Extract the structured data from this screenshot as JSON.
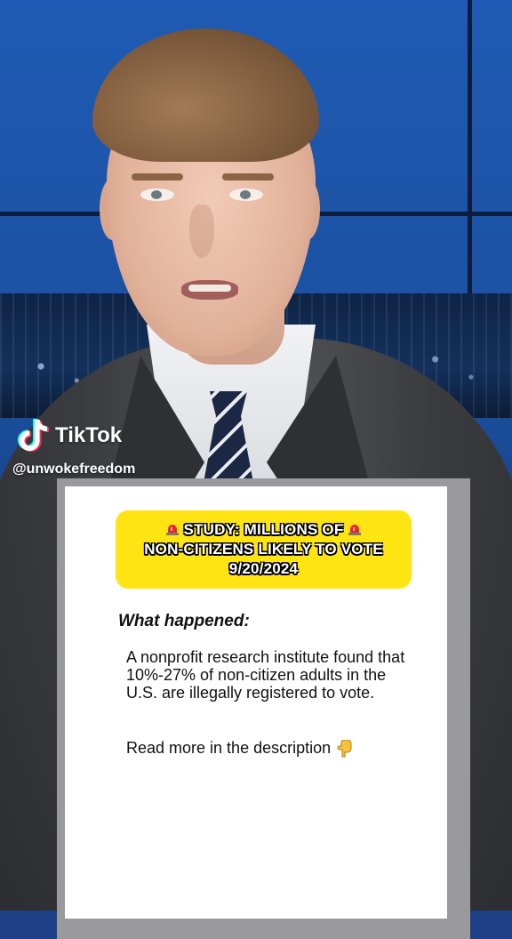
{
  "watermark": {
    "brand": "TikTok",
    "handle": "@unwokefreedom"
  },
  "card": {
    "headline_line1": "STUDY: MILLIONS OF",
    "headline_line2": "NON-CITIZENS LIKELY TO VOTE",
    "headline_date": "9/20/2024",
    "section_title": "What happened:",
    "body": "A nonprofit research institute found that 10%-27% of non-citizen adults in the U.S. are illegally registered to vote.",
    "read_more": "Read more in the description",
    "icons": [
      "siren-icon",
      "siren-icon",
      "pointing-down-hand-icon"
    ],
    "colors": {
      "headline_bg": "#ffe414",
      "card_bg": "#ffffff",
      "frame": "#9a9a9c"
    }
  }
}
